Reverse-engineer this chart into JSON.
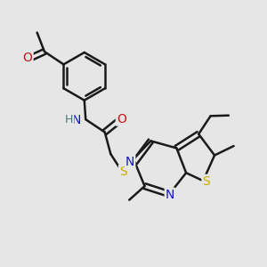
{
  "background_color": "#e6e6e6",
  "bond_color": "#1a1a1a",
  "bond_width": 1.8,
  "atom_colors": {
    "N": "#1414cc",
    "O": "#cc1414",
    "S": "#ccaa00",
    "C": "#1a1a1a",
    "H": "#4a7a7a"
  },
  "fig_width": 3.0,
  "fig_height": 3.0,
  "dpi": 100
}
